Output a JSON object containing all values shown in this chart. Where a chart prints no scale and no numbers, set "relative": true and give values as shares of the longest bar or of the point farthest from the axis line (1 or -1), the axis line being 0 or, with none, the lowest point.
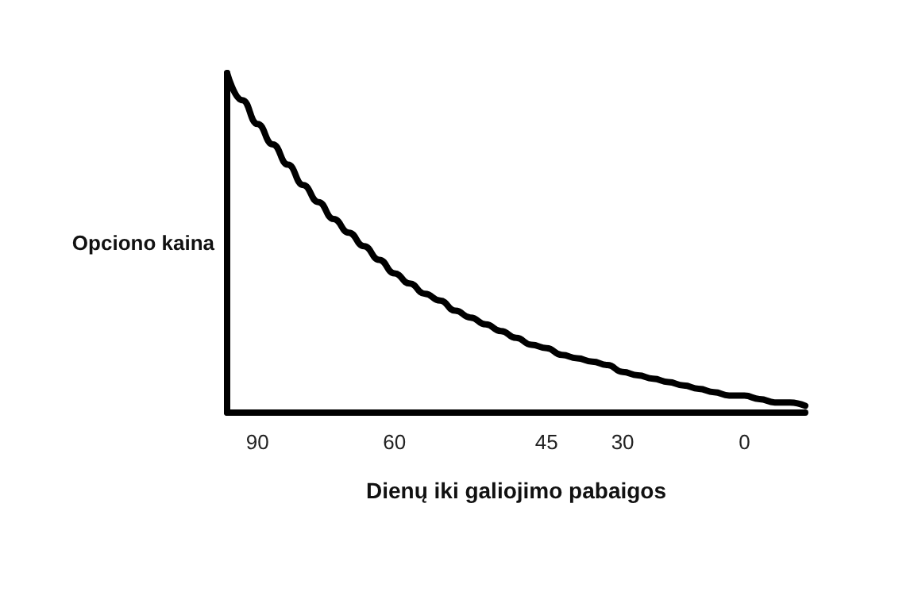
{
  "chart_data": {
    "type": "line",
    "relative": true,
    "xlabel": "Dienų iki galiojimo pabaigos",
    "ylabel": "Opciono kaina",
    "categories": [
      null,
      null,
      "90",
      null,
      null,
      null,
      null,
      null,
      null,
      null,
      null,
      "60",
      null,
      null,
      null,
      null,
      null,
      null,
      null,
      null,
      null,
      "45",
      null,
      null,
      null,
      null,
      "30",
      null,
      null,
      null,
      null,
      null,
      null,
      null,
      "0",
      null,
      null,
      null,
      null
    ],
    "series": [
      {
        "color": "#000000",
        "values": [
          1.0,
          0.92,
          0.85,
          0.79,
          0.73,
          0.67,
          0.62,
          0.57,
          0.53,
          0.49,
          0.45,
          0.41,
          0.38,
          0.35,
          0.33,
          0.3,
          0.28,
          0.26,
          0.24,
          0.22,
          0.2,
          0.19,
          0.17,
          0.16,
          0.15,
          0.14,
          0.12,
          0.11,
          0.1,
          0.09,
          0.08,
          0.07,
          0.06,
          0.05,
          0.05,
          0.04,
          0.03,
          0.03,
          0.02
        ]
      }
    ],
    "marker": "none",
    "grid": false
  }
}
